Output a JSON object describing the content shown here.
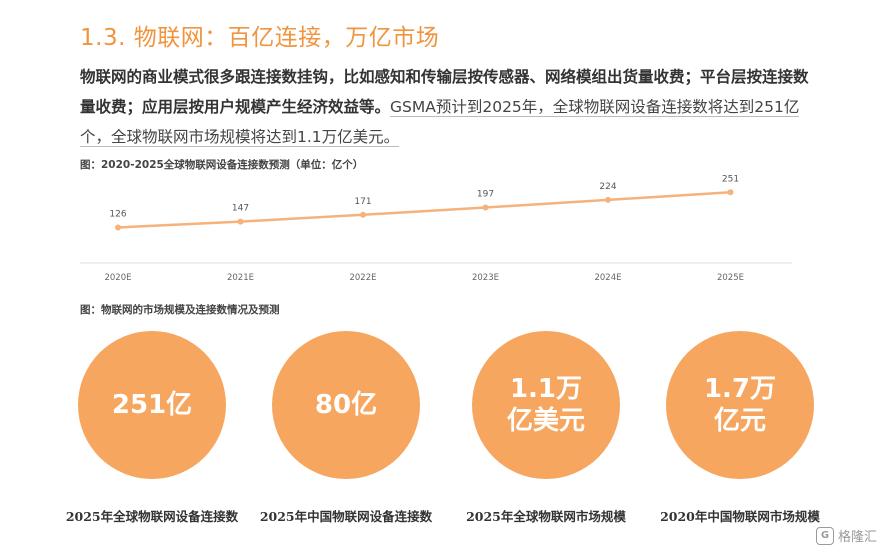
{
  "title": "1.3. 物联网：百亿连接，万亿市场",
  "paragraph": {
    "bold": "物联网的商业模式很多跟连接数挂钩，比如感知和传输层按传感器、网络模组出货量收费；平台层按连接数量收费；应用层按用户规模产生经济效益等。",
    "plain": "GSMA预计到2025年，全球物联网设备连接数将达到251亿个，全球物联网市场规模将达到1.1万亿美元。"
  },
  "figure1_title": "图：2020-2025全球物联网设备连接数预测（单位：亿个）",
  "figure2_title": "图：物联网的市场规模及连接数情况及预测",
  "chart_data": {
    "type": "line",
    "title": "图：2020-2025全球物联网设备连接数预测（单位：亿个）",
    "categories": [
      "2020E",
      "2021E",
      "2022E",
      "2023E",
      "2024E",
      "2025E"
    ],
    "values": [
      126,
      147,
      171,
      197,
      224,
      251
    ],
    "data_labels": [
      "126",
      "147",
      "171",
      "197",
      "224",
      "251"
    ],
    "color": "#f6b27a",
    "ylim": [
      0,
      330
    ],
    "grid": false,
    "legend": "none"
  },
  "circles": [
    {
      "value": "251亿",
      "caption": "2025年全球物联网设备连接数"
    },
    {
      "value": "80亿",
      "caption": "2025年中国物联网设备连接数"
    },
    {
      "value": "1.1万\n亿美元",
      "caption": "2025年全球物联网市场规模"
    },
    {
      "value": "1.7万\n亿元",
      "caption": "2020年中国物联网市场规模"
    }
  ],
  "circle_color": "#f6a65e",
  "accent_color": "#f0943e",
  "watermark": {
    "icon": "G",
    "text": "格隆汇",
    "icon_name": "gelonghui-logo-icon"
  }
}
